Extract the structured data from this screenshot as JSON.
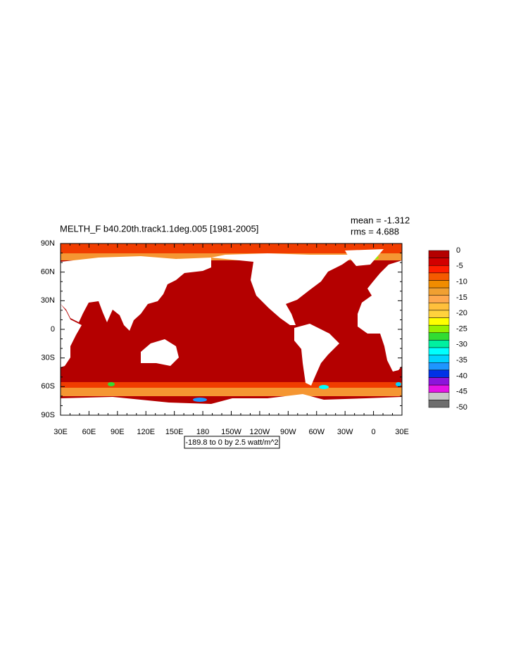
{
  "title": "MELTH_F b40.20th.track1.1deg.005 [1981-2005]",
  "stats": {
    "mean": "mean = -1.312",
    "rms": "rms = 4.688"
  },
  "lat_labels": [
    "90N",
    "60N",
    "30N",
    "0",
    "30S",
    "60S",
    "90S"
  ],
  "lon_labels": [
    "30E",
    "60E",
    "90E",
    "120E",
    "150E",
    "180",
    "150W",
    "120W",
    "90W",
    "60W",
    "30W",
    "0",
    "30E"
  ],
  "info_label": "-189.8 to 0 by 2.5 watt/m^2",
  "colorbar": {
    "labels": [
      "0",
      "-5",
      "-10",
      "-15",
      "-20",
      "-25",
      "-30",
      "-35",
      "-40",
      "-45",
      "-50"
    ],
    "colors": [
      "#b40000",
      "#d20000",
      "#ff1e00",
      "#f55a00",
      "#f08c00",
      "#f0a032",
      "#ffa84e",
      "#ffc03c",
      "#ffd23c",
      "#ffff00",
      "#96f000",
      "#32dc32",
      "#00f0a0",
      "#00ffff",
      "#00d2ff",
      "#1e96ff",
      "#0032e6",
      "#8c14dc",
      "#e614e6",
      "#c8c8c8",
      "#6e6e6e"
    ]
  }
}
